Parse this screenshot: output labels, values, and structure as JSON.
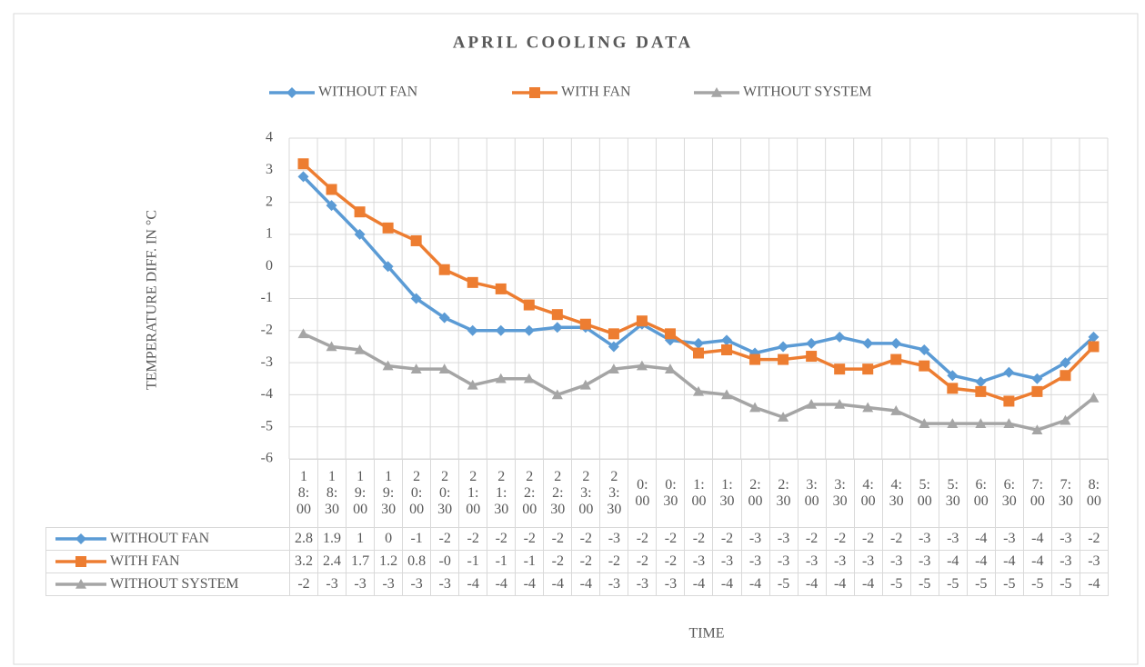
{
  "chart_data": {
    "type": "line",
    "title": "APRIL COOLING DATA",
    "y_label": "TEMPERATURE DIFF. IN °C",
    "x_label": "TIME",
    "categories": [
      "18:00",
      "18:30",
      "19:00",
      "19:30",
      "20:00",
      "20:30",
      "21:00",
      "21:30",
      "22:00",
      "22:30",
      "23:00",
      "23:30",
      "0:00",
      "0:30",
      "1:00",
      "1:30",
      "2:00",
      "2:30",
      "3:00",
      "3:30",
      "4:00",
      "4:30",
      "5:00",
      "5:30",
      "6:00",
      "6:30",
      "7:00",
      "7:30",
      "8:00"
    ],
    "ylim": [
      -6,
      4
    ],
    "yticks": [
      -6,
      -5,
      -4,
      -3,
      -2,
      -1,
      0,
      1,
      2,
      3,
      4
    ],
    "grid": true,
    "legend": "top",
    "data_table": true,
    "series": [
      {
        "name": "WITHOUT FAN",
        "color": "#5b9bd5",
        "marker": "diamond",
        "values": [
          2.8,
          1.9,
          1.0,
          0.0,
          -1.0,
          -1.6,
          -2.0,
          -2.0,
          -2.0,
          -1.9,
          -1.9,
          -2.5,
          -1.8,
          -2.3,
          -2.4,
          -2.3,
          -2.7,
          -2.5,
          -2.4,
          -2.2,
          -2.4,
          -2.4,
          -2.6,
          -3.4,
          -3.6,
          -3.3,
          -3.5,
          -3.0,
          -2.2
        ],
        "value_labels": [
          "2.8",
          "1.9",
          "1",
          "0",
          "-1",
          "-2",
          "-2",
          "-2",
          "-2",
          "-2",
          "-2",
          "-3",
          "-2",
          "-2",
          "-2",
          "-2",
          "-3",
          "-3",
          "-2",
          "-2",
          "-2",
          "-2",
          "-3",
          "-3",
          "-4",
          "-3",
          "-4",
          "-3",
          "-2"
        ]
      },
      {
        "name": "WITH FAN",
        "color": "#ed7d31",
        "marker": "square",
        "values": [
          3.2,
          2.4,
          1.7,
          1.2,
          0.8,
          -0.1,
          -0.5,
          -0.7,
          -1.2,
          -1.5,
          -1.8,
          -2.1,
          -1.7,
          -2.1,
          -2.7,
          -2.6,
          -2.9,
          -2.9,
          -2.8,
          -3.2,
          -3.2,
          -2.9,
          -3.1,
          -3.8,
          -3.9,
          -4.2,
          -3.9,
          -3.4,
          -2.5
        ],
        "value_labels": [
          "3.2",
          "2.4",
          "1.7",
          "1.2",
          "0.8",
          "-0",
          "-1",
          "-1",
          "-1",
          "-2",
          "-2",
          "-2",
          "-2",
          "-2",
          "-3",
          "-3",
          "-3",
          "-3",
          "-3",
          "-3",
          "-3",
          "-3",
          "-3",
          "-4",
          "-4",
          "-4",
          "-4",
          "-3",
          "-3"
        ]
      },
      {
        "name": "WITHOUT SYSTEM",
        "color": "#a5a5a5",
        "marker": "triangle",
        "values": [
          -2.1,
          -2.5,
          -2.6,
          -3.1,
          -3.2,
          -3.2,
          -3.7,
          -3.5,
          -3.5,
          -4.0,
          -3.7,
          -3.2,
          -3.1,
          -3.2,
          -3.9,
          -4.0,
          -4.4,
          -4.7,
          -4.3,
          -4.3,
          -4.4,
          -4.5,
          -4.9,
          -4.9,
          -4.9,
          -4.9,
          -5.1,
          -4.8,
          -4.1
        ],
        "value_labels": [
          "-2",
          "-3",
          "-3",
          "-3",
          "-3",
          "-3",
          "-4",
          "-4",
          "-4",
          "-4",
          "-4",
          "-3",
          "-3",
          "-3",
          "-4",
          "-4",
          "-4",
          "-5",
          "-4",
          "-4",
          "-4",
          "-5",
          "-5",
          "-5",
          "-5",
          "-5",
          "-5",
          "-5",
          "-4"
        ]
      }
    ]
  }
}
